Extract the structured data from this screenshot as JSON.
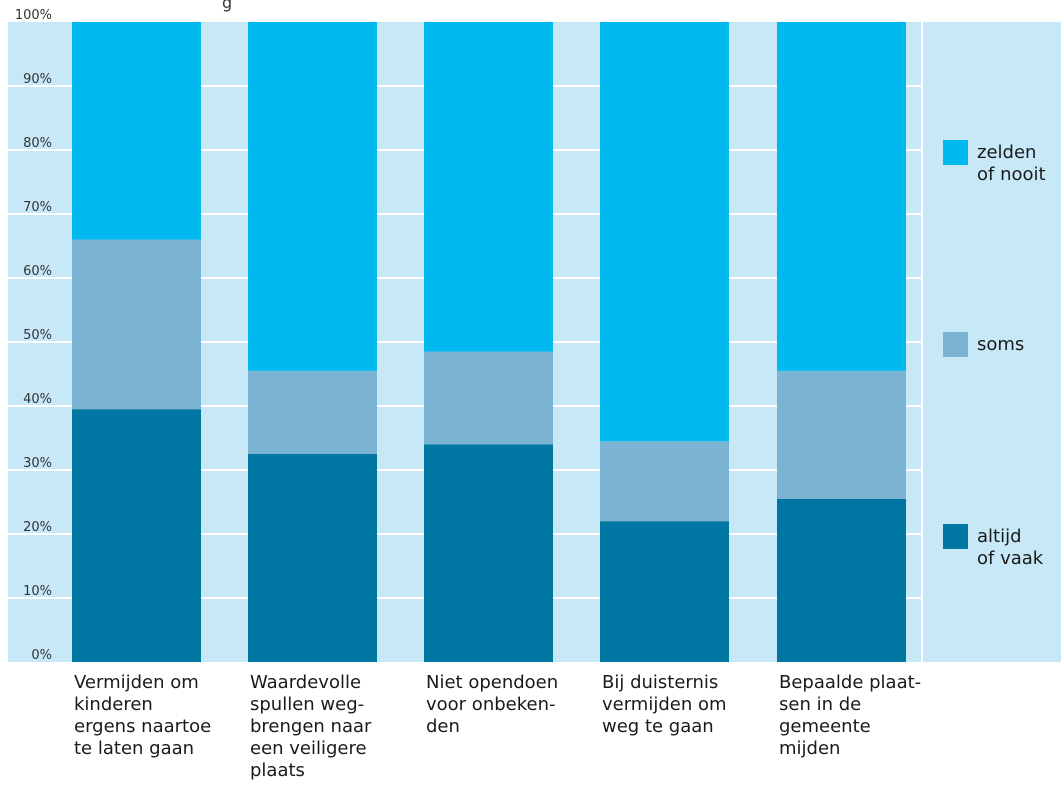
{
  "top_label_fragment": "g",
  "chart_data": {
    "type": "bar",
    "stacked": true,
    "percent": true,
    "ylim": [
      0,
      100
    ],
    "yticks": [
      0,
      10,
      20,
      30,
      40,
      50,
      60,
      70,
      80,
      90,
      100
    ],
    "ytick_labels": [
      "0%",
      "10%",
      "20%",
      "30%",
      "40%",
      "50%",
      "60%",
      "70%",
      "80%",
      "90%",
      "100%"
    ],
    "grid": true,
    "legend_position": "right",
    "categories": [
      [
        "Vermijden om",
        "kinderen",
        "ergens naartoe",
        "te laten gaan"
      ],
      [
        "Waardevolle",
        "spullen weg-",
        "brengen naar",
        "een veiligere",
        "plaats"
      ],
      [
        "Niet opendoen",
        "voor onbeken-",
        "den"
      ],
      [
        "Bij duisternis",
        "vermijden om",
        "weg te gaan"
      ],
      [
        "Bepaalde plaat-",
        "sen in de",
        "gemeente",
        "mijden"
      ]
    ],
    "series": [
      {
        "name": [
          "altijd",
          "of vaak"
        ],
        "color": "#0077a3",
        "values": [
          39.5,
          32.5,
          34,
          22,
          25.5
        ]
      },
      {
        "name": [
          "soms"
        ],
        "color": "#7ab4d2",
        "values": [
          26.5,
          13,
          14.5,
          12.5,
          20
        ]
      },
      {
        "name": [
          "zelden",
          "of nooit"
        ],
        "color": "#00b9ef",
        "values": [
          34,
          54.5,
          51.5,
          65.5,
          54.5
        ]
      }
    ],
    "legend_order": [
      2,
      1,
      0
    ],
    "colors": {
      "plot_bg": "#c6e8f7",
      "gridline": "#ffffff"
    }
  }
}
